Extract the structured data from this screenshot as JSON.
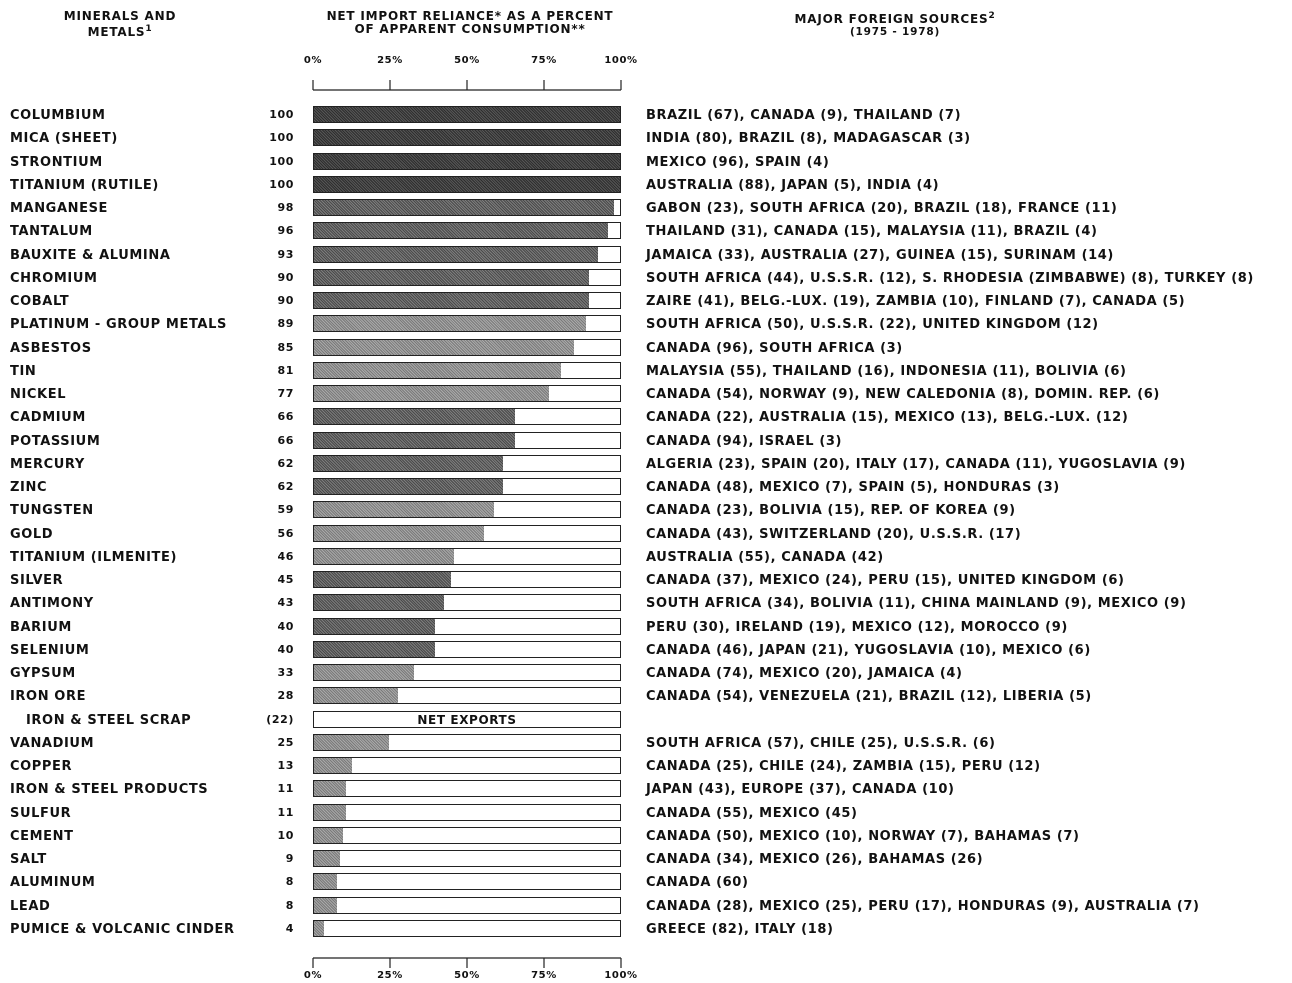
{
  "headers": {
    "minerals": {
      "line1": "MINERALS AND",
      "line2": "METALS",
      "sup": "1"
    },
    "reliance": {
      "line1": "NET IMPORT RELIANCE* AS A PERCENT",
      "line2": "OF APPARENT CONSUMPTION**"
    },
    "sources": {
      "line1": "MAJOR FOREIGN SOURCES",
      "sup": "2",
      "line2": "(1975 - 1978)"
    }
  },
  "chart_data": {
    "type": "bar",
    "orientation": "horizontal",
    "x_ticks": [
      "0%",
      "25%",
      "50%",
      "75%",
      "100%"
    ],
    "xlim": [
      0,
      100
    ],
    "rows": [
      {
        "name": "COLUMBIUM",
        "label": "100",
        "value": 100,
        "sources": "BRAZIL (67), CANADA (9), THAILAND (7)"
      },
      {
        "name": "MICA (SHEET)",
        "label": "100",
        "value": 100,
        "sources": "INDIA (80), BRAZIL (8), MADAGASCAR (3)"
      },
      {
        "name": "STRONTIUM",
        "label": "100",
        "value": 100,
        "sources": "MEXICO (96), SPAIN (4)"
      },
      {
        "name": "TITANIUM (RUTILE)",
        "label": "100",
        "value": 100,
        "sources": "AUSTRALIA (88), JAPAN (5), INDIA (4)"
      },
      {
        "name": "MANGANESE",
        "label": "98",
        "value": 98,
        "sources": "GABON (23), SOUTH AFRICA (20), BRAZIL (18), FRANCE (11)"
      },
      {
        "name": "TANTALUM",
        "label": "96",
        "value": 96,
        "sources": "THAILAND (31), CANADA (15), MALAYSIA (11), BRAZIL (4)"
      },
      {
        "name": "BAUXITE & ALUMINA",
        "label": "93",
        "value": 93,
        "sources": "JAMAICA (33), AUSTRALIA (27), GUINEA (15), SURINAM (14)"
      },
      {
        "name": "CHROMIUM",
        "label": "90",
        "value": 90,
        "sources": "SOUTH AFRICA (44), U.S.S.R. (12), S. RHODESIA (ZIMBABWE) (8), TURKEY (8)"
      },
      {
        "name": "COBALT",
        "label": "90",
        "value": 90,
        "sources": "ZAIRE (41), BELG.-LUX. (19), ZAMBIA (10), FINLAND (7), CANADA (5)"
      },
      {
        "name": "PLATINUM - GROUP METALS",
        "label": "89",
        "value": 89,
        "sources": "SOUTH AFRICA (50), U.S.S.R. (22), UNITED KINGDOM (12)"
      },
      {
        "name": "ASBESTOS",
        "label": "85",
        "value": 85,
        "sources": "CANADA (96), SOUTH AFRICA (3)"
      },
      {
        "name": "TIN",
        "label": "81",
        "value": 81,
        "sources": "MALAYSIA (55), THAILAND (16), INDONESIA (11), BOLIVIA (6)"
      },
      {
        "name": "NICKEL",
        "label": "77",
        "value": 77,
        "sources": "CANADA (54), NORWAY (9), NEW CALEDONIA (8), DOMIN. REP. (6)"
      },
      {
        "name": "CADMIUM",
        "label": "66",
        "value": 66,
        "sources": "CANADA (22), AUSTRALIA (15), MEXICO (13), BELG.-LUX. (12)"
      },
      {
        "name": "POTASSIUM",
        "label": "66",
        "value": 66,
        "sources": "CANADA (94), ISRAEL (3)"
      },
      {
        "name": "MERCURY",
        "label": "62",
        "value": 62,
        "sources": "ALGERIA (23), SPAIN (20), ITALY (17), CANADA (11), YUGOSLAVIA (9)"
      },
      {
        "name": "ZINC",
        "label": "62",
        "value": 62,
        "sources": "CANADA (48), MEXICO (7), SPAIN (5), HONDURAS (3)"
      },
      {
        "name": "TUNGSTEN",
        "label": "59",
        "value": 59,
        "sources": "CANADA (23), BOLIVIA (15), REP. OF KOREA (9)"
      },
      {
        "name": "GOLD",
        "label": "56",
        "value": 56,
        "sources": "CANADA (43), SWITZERLAND (20), U.S.S.R. (17)"
      },
      {
        "name": "TITANIUM (ILMENITE)",
        "label": "46",
        "value": 46,
        "sources": "AUSTRALIA (55), CANADA (42)"
      },
      {
        "name": "SILVER",
        "label": "45",
        "value": 45,
        "sources": "CANADA (37), MEXICO (24), PERU (15), UNITED KINGDOM (6)"
      },
      {
        "name": "ANTIMONY",
        "label": "43",
        "value": 43,
        "sources": "SOUTH AFRICA (34), BOLIVIA (11), CHINA MAINLAND (9), MEXICO (9)"
      },
      {
        "name": "BARIUM",
        "label": "40",
        "value": 40,
        "sources": "PERU (30), IRELAND (19), MEXICO (12), MOROCCO (9)"
      },
      {
        "name": "SELENIUM",
        "label": "40",
        "value": 40,
        "sources": "CANADA (46), JAPAN (21), YUGOSLAVIA (10), MEXICO (6)"
      },
      {
        "name": "GYPSUM",
        "label": "33",
        "value": 33,
        "sources": "CANADA (74), MEXICO (20), JAMAICA (4)"
      },
      {
        "name": "IRON ORE",
        "label": "28",
        "value": 28,
        "sources": "CANADA (54), VENEZUELA (21), BRAZIL (12), LIBERIA (5)"
      },
      {
        "name": "IRON & STEEL SCRAP",
        "label": "(22)",
        "value": 0,
        "bar_text": "NET EXPORTS",
        "indent": true,
        "sources": ""
      },
      {
        "name": "VANADIUM",
        "label": "25",
        "value": 25,
        "sources": "SOUTH AFRICA (57), CHILE (25), U.S.S.R. (6)"
      },
      {
        "name": "COPPER",
        "label": "13",
        "value": 13,
        "sources": "CANADA (25), CHILE (24), ZAMBIA (15), PERU (12)"
      },
      {
        "name": "IRON & STEEL PRODUCTS",
        "label": "11",
        "value": 11,
        "sources": "JAPAN (43), EUROPE (37), CANADA (10)"
      },
      {
        "name": "SULFUR",
        "label": "11",
        "value": 11,
        "sources": "CANADA (55), MEXICO (45)"
      },
      {
        "name": "CEMENT",
        "label": "10",
        "value": 10,
        "sources": "CANADA (50), MEXICO (10), NORWAY (7), BAHAMAS (7)"
      },
      {
        "name": "SALT",
        "label": "9",
        "value": 9,
        "sources": "CANADA (34), MEXICO (26), BAHAMAS (26)"
      },
      {
        "name": "ALUMINUM",
        "label": "8",
        "value": 8,
        "sources": "CANADA (60)"
      },
      {
        "name": "LEAD",
        "label": "8",
        "value": 8,
        "sources": "CANADA (28), MEXICO (25), PERU (17), HONDURAS (9), AUSTRALIA (7)"
      },
      {
        "name": "PUMICE & VOLCANIC CINDER",
        "label": "4",
        "value": 4,
        "sources": "GREECE (82), ITALY (18)"
      }
    ]
  }
}
